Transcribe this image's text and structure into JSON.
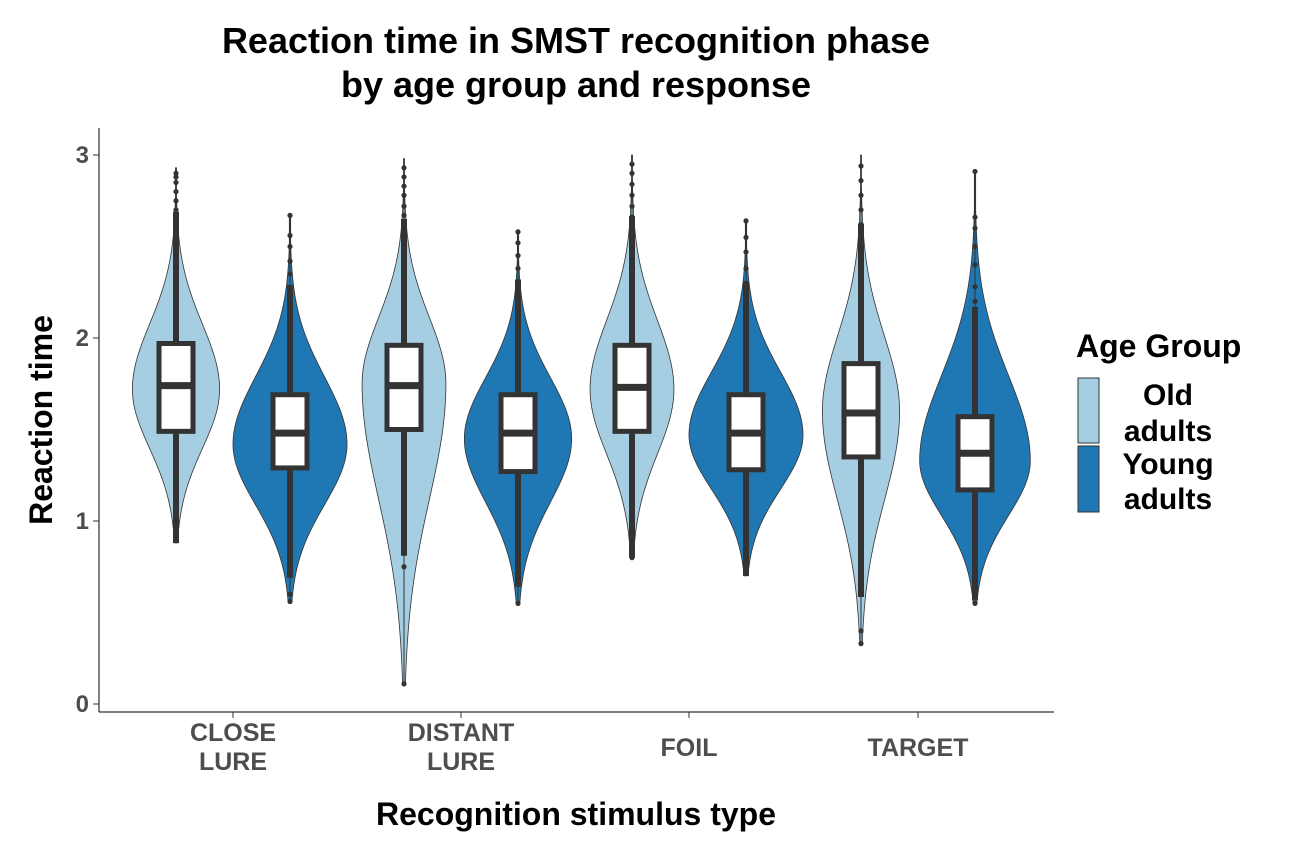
{
  "chart_data": {
    "type": "violin",
    "title": [
      "Reaction time in SMST recognition phase",
      "by age group and response"
    ],
    "xlabel": "Recognition stimulus type",
    "ylabel": "Reaction time",
    "ylim": [
      0,
      3.1
    ],
    "yticks": [
      "0",
      "1",
      "2",
      "3"
    ],
    "categories": [
      {
        "line1": "CLOSE",
        "line2": "LURE"
      },
      {
        "line1": "DISTANT",
        "line2": "LURE"
      },
      {
        "line1": "FOIL",
        "line2": ""
      },
      {
        "line1": "TARGET",
        "line2": ""
      }
    ],
    "legend": {
      "title": "Age Group",
      "placement": "right",
      "items": [
        {
          "line1": "Old",
          "line2": "adults",
          "color": "#a6cee3"
        },
        {
          "line1": "Young",
          "line2": "adults",
          "color": "#1f78b4"
        }
      ]
    },
    "series": [
      {
        "group": "Old adults",
        "color": "#a6cee3",
        "stats": [
          {
            "min": 0.88,
            "q1": 1.49,
            "median": 1.74,
            "q3": 1.97,
            "max": 2.93,
            "mode": 1.72,
            "peak": 0.26,
            "outliers": [
              2.7,
              2.75,
              2.8,
              2.85,
              2.88,
              2.9
            ]
          },
          {
            "min": 0.11,
            "q1": 1.5,
            "median": 1.74,
            "q3": 1.96,
            "max": 2.98,
            "mode": 1.75,
            "peak": 0.25,
            "outliers": [
              0.11,
              0.75,
              2.62,
              2.67,
              2.72,
              2.78,
              2.83,
              2.88,
              2.93
            ]
          },
          {
            "min": 0.8,
            "q1": 1.49,
            "median": 1.73,
            "q3": 1.96,
            "max": 3.0,
            "mode": 1.72,
            "peak": 0.25,
            "outliers": [
              0.8,
              2.66,
              2.72,
              2.78,
              2.84,
              2.9,
              2.95
            ]
          },
          {
            "min": 0.33,
            "q1": 1.35,
            "median": 1.59,
            "q3": 1.86,
            "max": 3.0,
            "mode": 1.6,
            "peak": 0.23,
            "outliers": [
              0.33,
              0.4,
              2.55,
              2.62,
              2.7,
              2.78,
              2.86,
              2.94
            ]
          }
        ]
      },
      {
        "group": "Young adults",
        "color": "#1f78b4",
        "stats": [
          {
            "min": 0.56,
            "q1": 1.29,
            "median": 1.48,
            "q3": 1.69,
            "max": 2.67,
            "mode": 1.42,
            "peak": 0.34,
            "outliers": [
              0.56,
              0.6,
              2.35,
              2.42,
              2.5,
              2.56,
              2.67
            ]
          },
          {
            "min": 0.55,
            "q1": 1.27,
            "median": 1.48,
            "q3": 1.69,
            "max": 2.58,
            "mode": 1.45,
            "peak": 0.32,
            "outliers": [
              0.55,
              2.3,
              2.38,
              2.45,
              2.52,
              2.58
            ]
          },
          {
            "min": 0.7,
            "q1": 1.28,
            "median": 1.48,
            "q3": 1.69,
            "max": 2.64,
            "mode": 1.47,
            "peak": 0.34,
            "outliers": [
              0.72,
              0.76,
              2.3,
              2.38,
              2.47,
              2.55,
              2.64
            ]
          },
          {
            "min": 0.55,
            "q1": 1.17,
            "median": 1.37,
            "q3": 1.57,
            "max": 2.91,
            "mode": 1.33,
            "peak": 0.33,
            "outliers": [
              0.55,
              0.68,
              2.2,
              2.28,
              2.4,
              2.5,
              2.6,
              2.66,
              2.91
            ]
          }
        ]
      }
    ]
  }
}
